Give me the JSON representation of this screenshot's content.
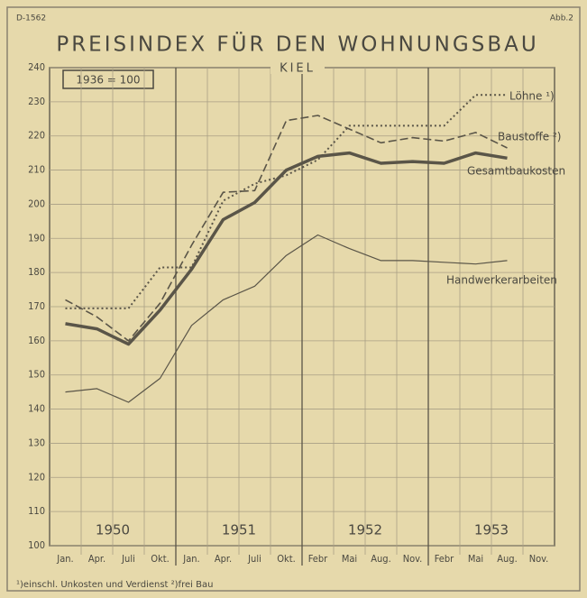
{
  "chart_data": {
    "type": "line",
    "code": "D-1562",
    "figure": "Abb.2",
    "title": "PREISINDEX FÜR DEN WOHNUNGSBAU",
    "subtitle": "KIEL",
    "base_note": "1936 = 100",
    "footnote": "¹)einschl. Unkosten und Verdienst   ²)frei Bau",
    "annotations": [
      "1950",
      "1951",
      "1952",
      "1953"
    ],
    "categories": [
      "Jan.",
      "Apr.",
      "Juli",
      "Okt.",
      "Jan.",
      "Apr.",
      "Juli",
      "Okt.",
      "Febr",
      "Mai",
      "Aug.",
      "Nov.",
      "Febr",
      "Mai",
      "Aug.",
      "Nov."
    ],
    "series": [
      {
        "name": "Löhne ¹)",
        "color": "#5a5548",
        "style": "dotted",
        "values": [
          169.5,
          169.5,
          169.5,
          181.5,
          181.5,
          201,
          206,
          208.5,
          213,
          223,
          223,
          223,
          223,
          232,
          232,
          null
        ]
      },
      {
        "name": "Baustoffe ²)",
        "color": "#5a5548",
        "style": "dashed",
        "values": [
          172,
          167,
          160,
          171,
          188,
          203.5,
          204,
          224.5,
          226,
          222,
          218,
          219.5,
          218.5,
          221,
          216.5,
          null
        ]
      },
      {
        "name": "Gesamtbaukosten",
        "color": "#5a5548",
        "style": "thick",
        "values": [
          165,
          163.5,
          159,
          169,
          181,
          195.5,
          200.5,
          210,
          214,
          215,
          212,
          212.5,
          212,
          215,
          213.5,
          null
        ]
      },
      {
        "name": "Handwerkerarbeiten",
        "color": "#5a5548",
        "style": "thin",
        "values": [
          145,
          146,
          142,
          149,
          164.5,
          172,
          176,
          185,
          191,
          187,
          183.5,
          183.5,
          183,
          182.5,
          183.5,
          null
        ]
      }
    ],
    "ylim": [
      100,
      240
    ],
    "yticks": [
      100,
      110,
      120,
      130,
      140,
      150,
      160,
      170,
      180,
      190,
      200,
      210,
      220,
      230,
      240
    ],
    "grid": true
  }
}
